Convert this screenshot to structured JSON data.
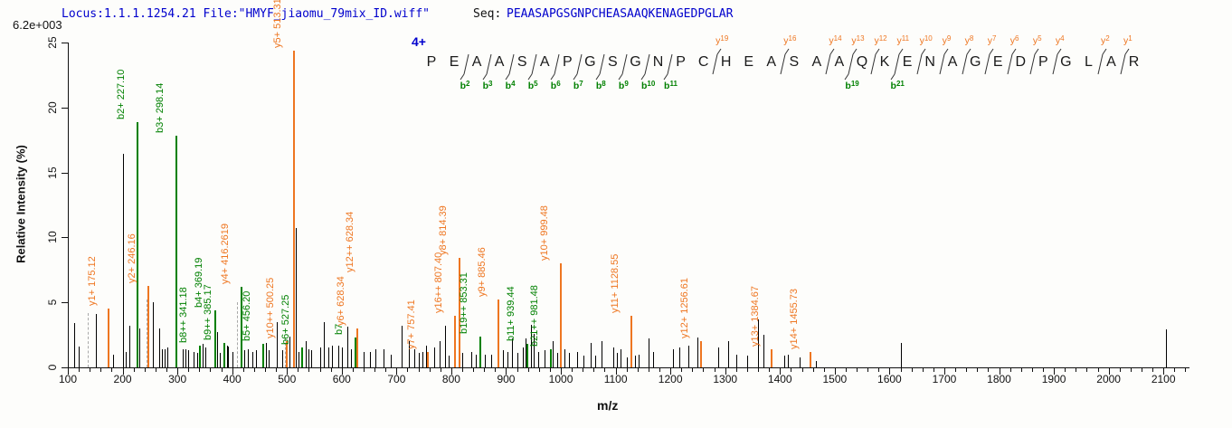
{
  "header": {
    "locus_file": "Locus:1.1.1.1254.21 File:\"HMYF_jiaomu_79mix_ID.wiff\"",
    "seq_label": "Seq:",
    "sequence_value": "PEAASAPGSGNPCHEASAAQKENAGEDPGLAR"
  },
  "precursor_charge": "4+",
  "colors": {
    "b_ion": "#008000",
    "y_ion": "#ee7621",
    "header_blue": "#0000cd",
    "raw_peak": "#000000",
    "dashed_peak": "#a9a9a9"
  },
  "sequence_ladder": {
    "residues": [
      "P",
      "E",
      "A",
      "A",
      "S",
      "A",
      "P",
      "G",
      "S",
      "G",
      "N",
      "P",
      "C",
      "H",
      "E",
      "A",
      "S",
      "A",
      "A",
      "Q",
      "K",
      "E",
      "N",
      "A",
      "G",
      "E",
      "D",
      "P",
      "G",
      "L",
      "A",
      "R"
    ],
    "cuts": [
      {
        "after": 2,
        "b": "b2"
      },
      {
        "after": 3,
        "b": "b3"
      },
      {
        "after": 4,
        "b": "b4"
      },
      {
        "after": 5,
        "b": "b5"
      },
      {
        "after": 6,
        "b": "b6"
      },
      {
        "after": 7,
        "b": "b7"
      },
      {
        "after": 8,
        "b": "b8"
      },
      {
        "after": 9,
        "b": "b9"
      },
      {
        "after": 10,
        "b": "b10"
      },
      {
        "after": 11,
        "b": "b11"
      },
      {
        "after": 13,
        "y": "y19"
      },
      {
        "after": 16,
        "y": "y16"
      },
      {
        "after": 18,
        "y": "y14"
      },
      {
        "after": 19,
        "y": "y13",
        "b": "b19"
      },
      {
        "after": 20,
        "y": "y12"
      },
      {
        "after": 21,
        "y": "y11",
        "b": "b21"
      },
      {
        "after": 22,
        "y": "y10"
      },
      {
        "after": 23,
        "y": "y9"
      },
      {
        "after": 24,
        "y": "y8"
      },
      {
        "after": 25,
        "y": "y7"
      },
      {
        "after": 26,
        "y": "y6"
      },
      {
        "after": 27,
        "y": "y5"
      },
      {
        "after": 28,
        "y": "y4"
      },
      {
        "after": 30,
        "y": "y2"
      },
      {
        "after": 31,
        "y": "y1"
      }
    ]
  },
  "chart_data": {
    "type": "bar",
    "subtype": "centroided-ms2-spectrum",
    "title": "",
    "xlabel": "m/z",
    "ylabel": "Relative  Intensity (%)",
    "intensity_max_label": "6.2e+003",
    "xlim": [
      100,
      2145
    ],
    "ylim": [
      0,
      25
    ],
    "x_major_tick_step": 100,
    "x_minor_tick_step": 20,
    "y_ticks": [
      0,
      5,
      10,
      15,
      20,
      25
    ],
    "x_tick_labels": [
      100,
      200,
      300,
      400,
      500,
      600,
      700,
      800,
      900,
      1000,
      1100,
      1200,
      1300,
      1400,
      1500,
      1600,
      1700,
      1800,
      1900,
      2000,
      2100
    ],
    "annotated_peaks": [
      {
        "label": "y1+ 175.12",
        "mz": 175.12,
        "pct": 4.5,
        "series": "y"
      },
      {
        "label": "b2+ 227.10",
        "mz": 227.1,
        "pct": 18.9,
        "series": "b"
      },
      {
        "label": "y2+ 246.16",
        "mz": 246.16,
        "pct": 6.3,
        "series": "y"
      },
      {
        "label": "b3+ 298.14",
        "mz": 298.14,
        "pct": 17.8,
        "series": "b"
      },
      {
        "label": "b8++ 341.18",
        "mz": 341.18,
        "pct": 1.7,
        "series": "b"
      },
      {
        "label": "b4+ 369.19",
        "mz": 369.19,
        "pct": 4.4,
        "series": "b"
      },
      {
        "label": "b9++ 385.17",
        "mz": 385.17,
        "pct": 1.9,
        "series": "b"
      },
      {
        "label": "y4+ 416.2619",
        "mz": 416.26,
        "pct": 6.2,
        "series": "y",
        "line_series": "b"
      },
      {
        "label": "b5+ 456.20",
        "mz": 456.2,
        "pct": 1.8,
        "series": "b"
      },
      {
        "label": "y10++ 500.25",
        "mz": 500.25,
        "pct": 2.0,
        "series": "y"
      },
      {
        "label": "y5+ 513.31",
        "mz": 513.31,
        "pct": 24.4,
        "series": "y"
      },
      {
        "label": "b6+ 527.25",
        "mz": 527.25,
        "pct": 1.5,
        "series": "b"
      },
      {
        "label": "b7",
        "mz": 624.3,
        "pct": 2.3,
        "series": "b"
      },
      {
        "label": "y6+ 628.34",
        "mz": 628.34,
        "pct": 3.0,
        "series": "y"
      },
      {
        "label": "y12++ 628.34",
        "mz": 628.34,
        "pct": 3.0,
        "series": "y",
        "label_only": true,
        "label_mz": 645,
        "label_bottom_pct": 7.3
      },
      {
        "label": "y7+ 757.41",
        "mz": 757.41,
        "pct": 1.2,
        "series": "y"
      },
      {
        "label": "y16++ 807.40",
        "mz": 807.4,
        "pct": 4.0,
        "series": "y"
      },
      {
        "label": "y8+ 814.39",
        "mz": 814.39,
        "pct": 8.4,
        "series": "y"
      },
      {
        "label": "b19++ 853.31",
        "mz": 853.31,
        "pct": 2.4,
        "series": "b"
      },
      {
        "label": "y9+ 885.46",
        "mz": 885.46,
        "pct": 5.2,
        "series": "y"
      },
      {
        "label": "b11+ 939.44",
        "mz": 939.44,
        "pct": 1.8,
        "series": "b"
      },
      {
        "label": "b21++ 981.48",
        "mz": 981.48,
        "pct": 1.4,
        "series": "b"
      },
      {
        "label": "y10+ 999.48",
        "mz": 999.48,
        "pct": 8.0,
        "series": "y"
      },
      {
        "label": "y11+ 1128.55",
        "mz": 1128.55,
        "pct": 4.0,
        "series": "y"
      },
      {
        "label": "y12+ 1256.61",
        "mz": 1256.61,
        "pct": 2.0,
        "series": "y"
      },
      {
        "label": "y13+ 1384.67",
        "mz": 1384.67,
        "pct": 1.4,
        "series": "y"
      },
      {
        "label": "y14+ 1455.73",
        "mz": 1455.73,
        "pct": 1.2,
        "series": "y"
      }
    ],
    "dashed_peaks": [
      [
        136,
        4.2
      ],
      [
        243,
        5.2
      ],
      [
        409,
        5.0
      ],
      [
        497,
        2.2
      ]
    ],
    "unlabeled_peaks": [
      [
        111,
        3.4
      ],
      [
        119,
        1.6
      ],
      [
        152,
        4.1
      ],
      [
        183,
        1.0
      ],
      [
        200,
        16.4
      ],
      [
        205,
        1.2
      ],
      [
        212,
        3.2
      ],
      [
        231,
        3.0
      ],
      [
        256,
        5.0
      ],
      [
        266,
        3.0
      ],
      [
        272,
        1.4
      ],
      [
        276,
        1.4
      ],
      [
        281,
        1.5
      ],
      [
        309,
        1.4
      ],
      [
        314,
        1.4
      ],
      [
        320,
        1.3
      ],
      [
        330,
        1.2
      ],
      [
        336,
        1.1
      ],
      [
        346,
        1.8
      ],
      [
        351,
        1.5
      ],
      [
        372,
        2.7
      ],
      [
        377,
        1.1
      ],
      [
        390,
        1.7
      ],
      [
        393,
        1.6
      ],
      [
        400,
        1.2
      ],
      [
        422,
        1.3
      ],
      [
        429,
        1.4
      ],
      [
        437,
        1.2
      ],
      [
        444,
        1.3
      ],
      [
        461,
        1.9
      ],
      [
        467,
        1.3
      ],
      [
        482,
        3.5
      ],
      [
        492,
        1.3
      ],
      [
        504,
        2.4
      ],
      [
        516,
        10.7
      ],
      [
        521,
        1.2
      ],
      [
        535,
        2.0
      ],
      [
        540,
        1.4
      ],
      [
        545,
        1.3
      ],
      [
        561,
        1.5
      ],
      [
        567,
        3.5
      ],
      [
        576,
        1.5
      ],
      [
        582,
        1.7
      ],
      [
        594,
        1.7
      ],
      [
        601,
        1.5
      ],
      [
        610,
        3.1
      ],
      [
        617,
        1.4
      ],
      [
        640,
        1.2
      ],
      [
        652,
        1.2
      ],
      [
        661,
        1.4
      ],
      [
        677,
        1.4
      ],
      [
        690,
        1.0
      ],
      [
        710,
        3.2
      ],
      [
        722,
        2.0
      ],
      [
        733,
        1.4
      ],
      [
        741,
        1.1
      ],
      [
        748,
        1.2
      ],
      [
        754,
        1.7
      ],
      [
        768,
        1.5
      ],
      [
        779,
        2.0
      ],
      [
        788,
        3.2
      ],
      [
        796,
        0.9
      ],
      [
        820,
        1.1
      ],
      [
        837,
        1.2
      ],
      [
        845,
        1.0
      ],
      [
        862,
        1.0
      ],
      [
        872,
        1.0
      ],
      [
        895,
        1.3
      ],
      [
        902,
        1.2
      ],
      [
        910,
        2.2
      ],
      [
        920,
        1.1
      ],
      [
        930,
        1.5
      ],
      [
        936,
        2.2
      ],
      [
        945,
        3.3
      ],
      [
        950,
        2.6
      ],
      [
        958,
        1.2
      ],
      [
        970,
        1.3
      ],
      [
        985,
        2.0
      ],
      [
        993,
        1.1
      ],
      [
        1007,
        1.4
      ],
      [
        1015,
        1.1
      ],
      [
        1030,
        1.2
      ],
      [
        1042,
        0.9
      ],
      [
        1055,
        1.9
      ],
      [
        1062,
        0.9
      ],
      [
        1075,
        2.0
      ],
      [
        1095,
        1.5
      ],
      [
        1102,
        1.1
      ],
      [
        1109,
        1.4
      ],
      [
        1120,
        0.8
      ],
      [
        1135,
        0.9
      ],
      [
        1142,
        1.0
      ],
      [
        1160,
        2.2
      ],
      [
        1168,
        1.2
      ],
      [
        1205,
        1.4
      ],
      [
        1216,
        1.5
      ],
      [
        1233,
        1.7
      ],
      [
        1250,
        2.3
      ],
      [
        1288,
        1.5
      ],
      [
        1305,
        2.0
      ],
      [
        1320,
        1.0
      ],
      [
        1340,
        0.9
      ],
      [
        1360,
        3.7
      ],
      [
        1370,
        2.5
      ],
      [
        1407,
        0.9
      ],
      [
        1415,
        1.0
      ],
      [
        1436,
        0.8
      ],
      [
        1465,
        0.5
      ],
      [
        1620,
        1.9
      ],
      [
        2105,
        2.9
      ]
    ]
  }
}
